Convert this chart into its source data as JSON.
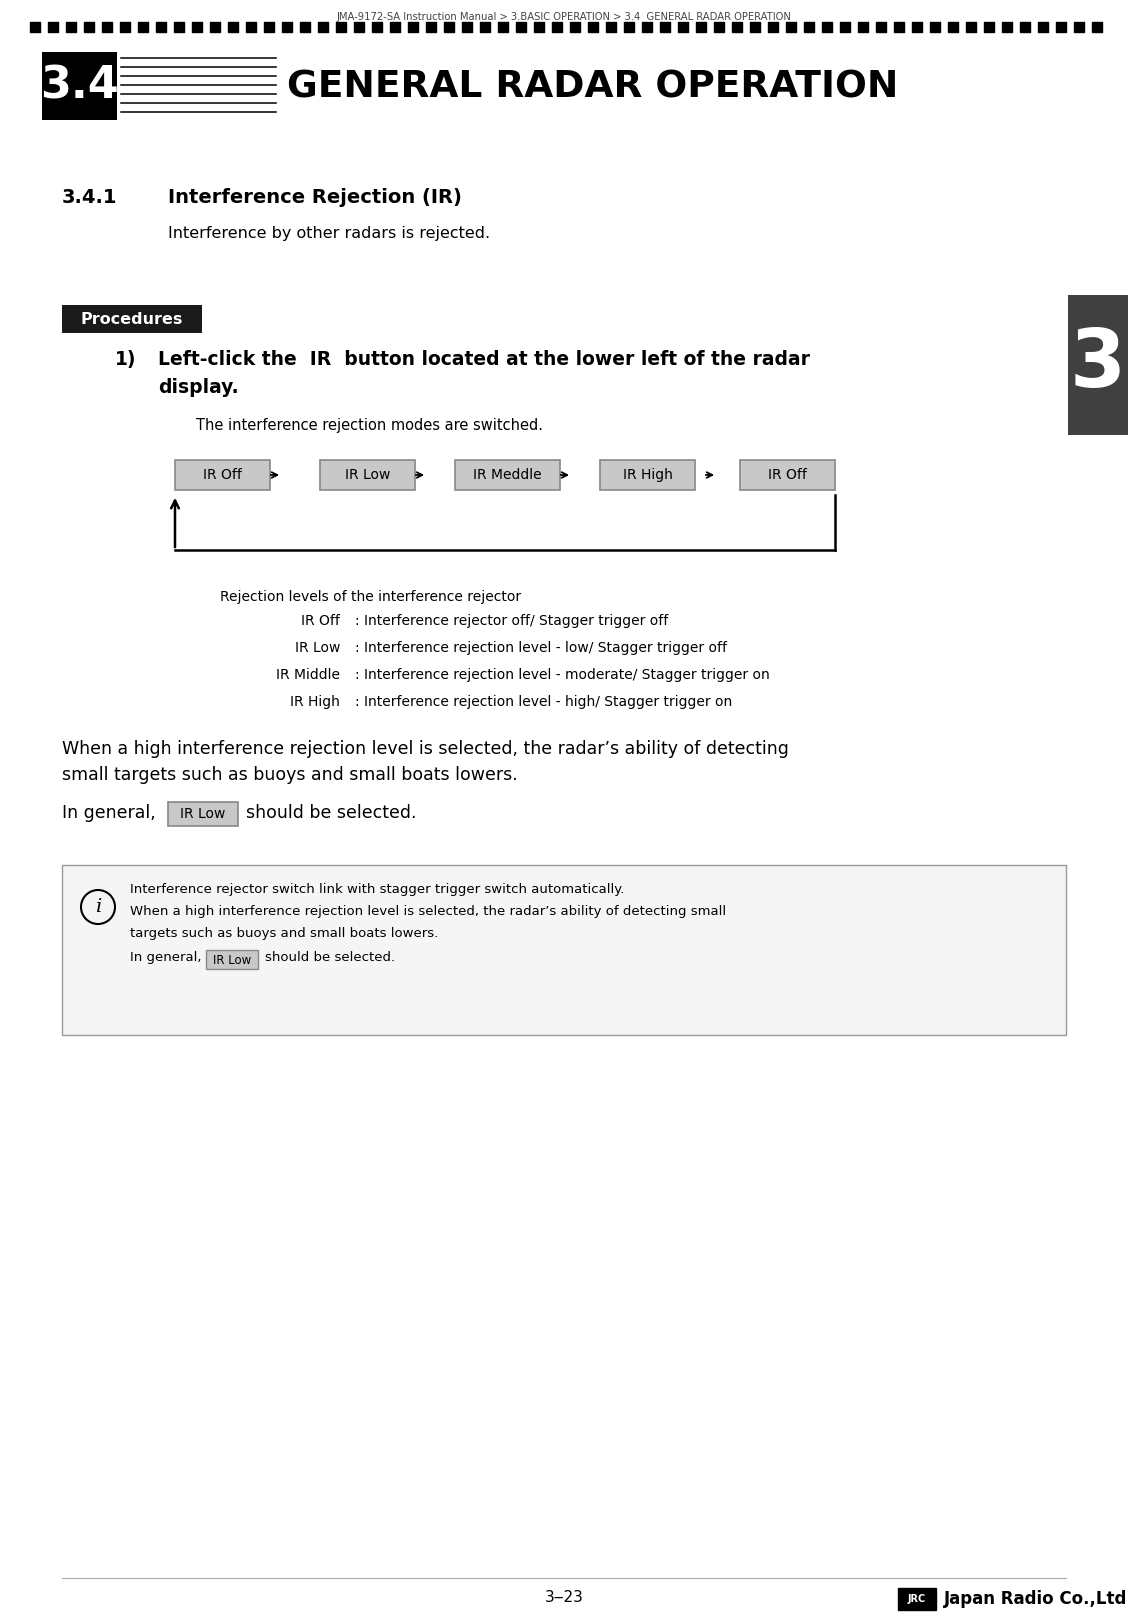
{
  "breadcrumb": "JMA-9172-SA Instruction Manual > 3.BASIC OPERATION > 3.4  GENERAL RADAR OPERATION",
  "section_number": "3.4",
  "section_title": "GENERAL RADAR OPERATION",
  "subsection_number": "3.4.1",
  "subsection_title": "Interference Rejection (IR)",
  "intro_text": "Interference by other radars is rejected.",
  "procedures_label": "Procedures",
  "step1_line1": "Left-click the  IR  button located at the lower left of the radar",
  "step1_line2": "display.",
  "step1_sub": "The interference rejection modes are switched.",
  "ir_buttons": [
    "IR Off",
    "IR Low",
    "IR Meddle",
    "IR High",
    "IR Off"
  ],
  "rejection_header": "Rejection levels of the interference rejector",
  "rl_labels": [
    "IR Off",
    "IR Low",
    "IR Middle",
    "IR High"
  ],
  "rl_descs": [
    ": Interference rejector off/ Stagger trigger off",
    ": Interference rejection level - low/ Stagger trigger off",
    ": Interference rejection level - moderate/ Stagger trigger on",
    ": Interference rejection level - high/ Stagger trigger on"
  ],
  "warn_line1": "When a high interference rejection level is selected, the radar’s ability of detecting",
  "warn_line2": "small targets such as buoys and small boats lowers.",
  "gen_prefix": "In general,",
  "ir_low_inline": "IR Low",
  "gen_suffix": "should be selected.",
  "info_line1": "Interference rejector switch link with stagger trigger switch automatically.",
  "info_line2": "When a high interference rejection level is selected, the radar’s ability of detecting small",
  "info_line3": "targets such as buoys and small boats lowers.",
  "info_gen": "In general,",
  "info_ir_low": "IR Low",
  "info_gen_suffix": "should be selected.",
  "footer_page": "3‒23",
  "footer_logo": "Japan Radio Co.,Ltd.",
  "sidebar_number": "3",
  "bg_color": "#ffffff",
  "procedures_bg": "#1a1a1a",
  "procedures_fg": "#ffffff",
  "sidebar_bg": "#404040",
  "sidebar_fg": "#ffffff",
  "btn_bg": "#c8c8c8",
  "btn_border": "#888888"
}
